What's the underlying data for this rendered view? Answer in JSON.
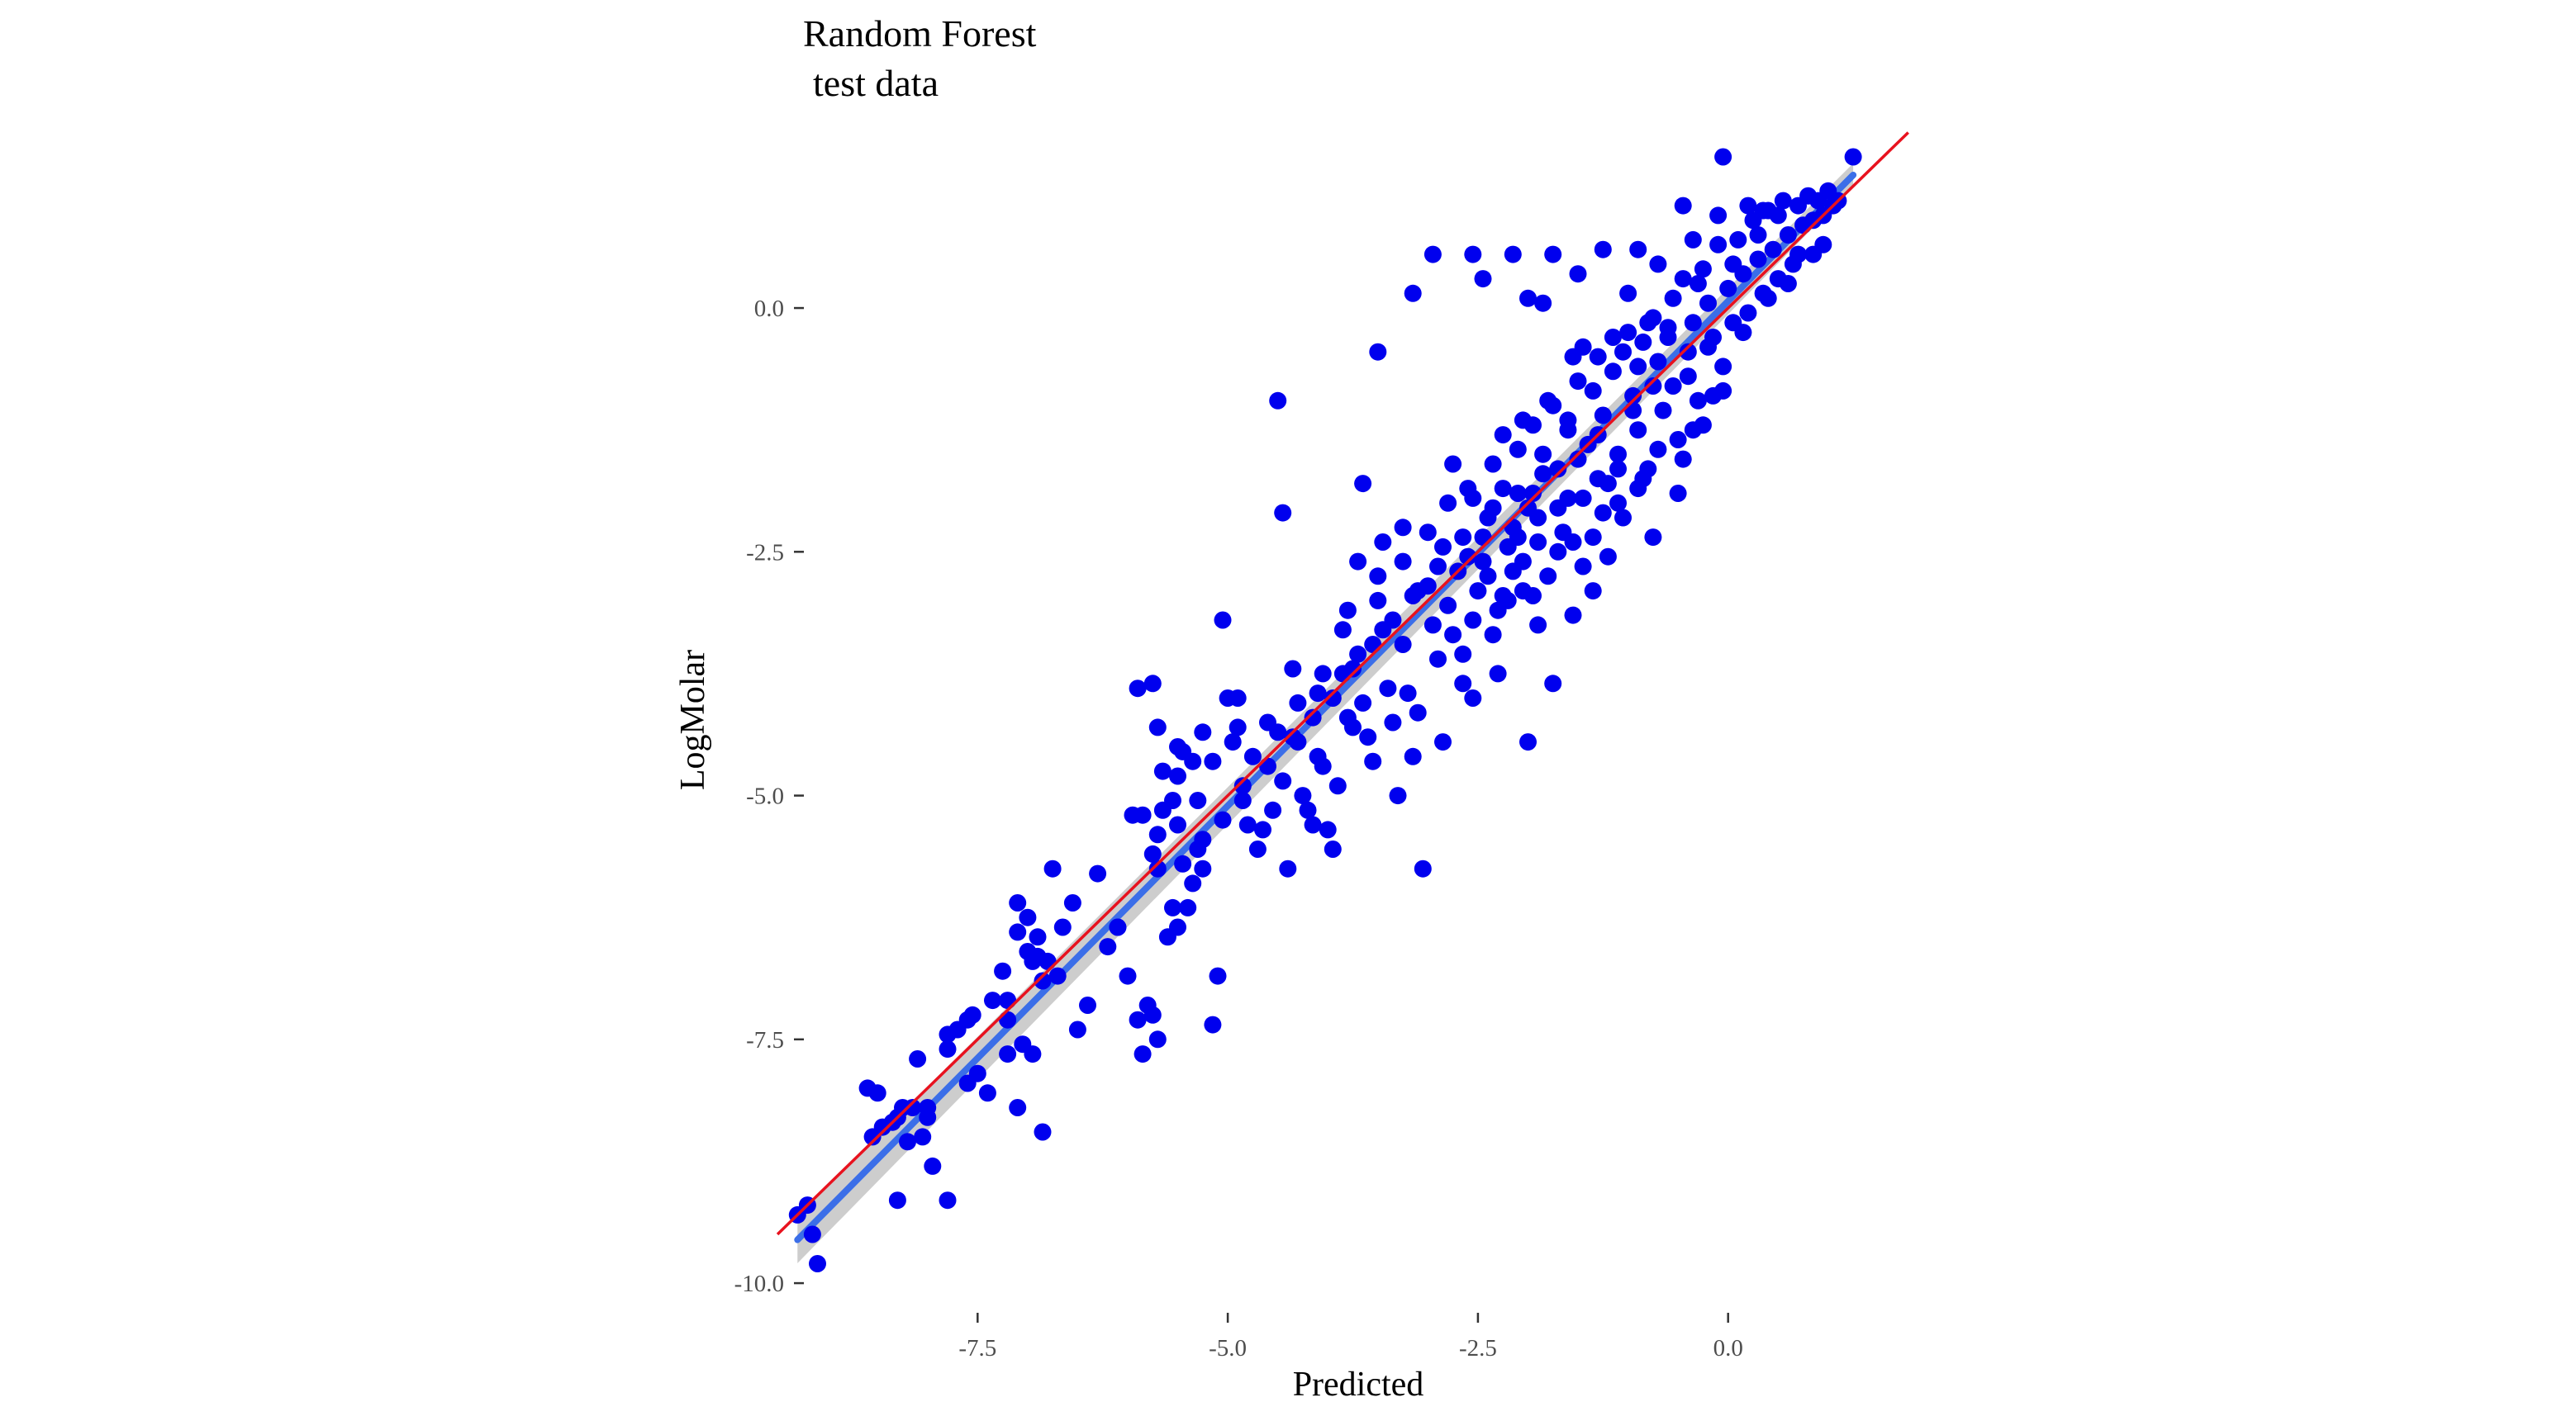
{
  "chart_data": {
    "type": "scatter",
    "title": "Random Forest",
    "subtitle": "test data",
    "xlabel": "Predicted",
    "ylabel": "LogMolar",
    "xlim": [
      -9.55,
      2.05
    ],
    "ylim": [
      -10.05,
      1.55
    ],
    "x_ticks": [
      -7.5,
      -5.0,
      -2.5,
      0.0
    ],
    "x_tick_labels": [
      "-7.5",
      "-5.0",
      "-2.5",
      "0.0"
    ],
    "y_ticks": [
      0.0,
      -2.5,
      -5.0,
      -7.5,
      -10.0
    ],
    "y_tick_labels": [
      "0.0",
      "-2.5",
      "-5.0",
      "-7.5",
      "-10.0"
    ],
    "grid": false,
    "colors": {
      "points": "#0000ee",
      "identity_line": "#e8121e",
      "fit_line": "#3b6ee8",
      "fit_band": "#c4c4c4"
    },
    "reference_line": {
      "type": "identity",
      "slope": 1,
      "intercept": 0,
      "x_range": [
        -9.5,
        1.8
      ]
    },
    "fit_line": {
      "type": "linear",
      "slope": 1.035,
      "intercept": 0.07,
      "x_range": [
        -9.3,
        1.25
      ]
    },
    "points": [
      [
        -9.3,
        -9.3
      ],
      [
        -9.2,
        -9.2
      ],
      [
        -9.15,
        -9.5
      ],
      [
        -9.1,
        -9.8
      ],
      [
        -8.3,
        -9.15
      ],
      [
        -8.6,
        -8
      ],
      [
        -8.5,
        -8.05
      ],
      [
        -8.35,
        -8.35
      ],
      [
        -8.2,
        -8.55
      ],
      [
        -8.15,
        -8.2
      ],
      [
        -8.05,
        -8.5
      ],
      [
        -8.0,
        -8.2
      ],
      [
        -7.95,
        -8.8
      ],
      [
        -7.8,
        -9.15
      ],
      [
        -8.45,
        -8.4
      ],
      [
        -8.3,
        -8.3
      ],
      [
        -8.1,
        -7.7
      ],
      [
        -7.8,
        -7.45
      ],
      [
        -7.7,
        -7.4
      ],
      [
        -7.6,
        -7.3
      ],
      [
        -7.55,
        -7.25
      ],
      [
        -7.5,
        -7.85
      ],
      [
        -7.4,
        -8.05
      ],
      [
        -7.35,
        -7.1
      ],
      [
        -7.2,
        -7.65
      ],
      [
        -7.25,
        -6.8
      ],
      [
        -7.1,
        -8.2
      ],
      [
        -7.05,
        -7.55
      ],
      [
        -6.95,
        -7.65
      ],
      [
        -6.85,
        -8.45
      ],
      [
        -7.2,
        -7.3
      ],
      [
        -7.1,
        -6.4
      ],
      [
        -7.0,
        -6.6
      ],
      [
        -7.0,
        -6.25
      ],
      [
        -6.9,
        -6.65
      ],
      [
        -6.85,
        -6.9
      ],
      [
        -6.8,
        -6.7
      ],
      [
        -6.75,
        -5.75
      ],
      [
        -6.7,
        -6.85
      ],
      [
        -6.9,
        -6.45
      ],
      [
        -7.1,
        -6.1
      ],
      [
        -6.5,
        -7.4
      ],
      [
        -6.4,
        -7.15
      ],
      [
        -6.2,
        -6.55
      ],
      [
        -6.1,
        -6.35
      ],
      [
        -6.0,
        -6.85
      ],
      [
        -5.9,
        -7.3
      ],
      [
        -5.85,
        -7.65
      ],
      [
        -5.8,
        -7.15
      ],
      [
        -5.75,
        -7.25
      ],
      [
        -5.7,
        -7.5
      ],
      [
        -5.6,
        -6.45
      ],
      [
        -5.55,
        -6.15
      ],
      [
        -5.5,
        -6.35
      ],
      [
        -5.4,
        -6.15
      ],
      [
        -5.35,
        -5.9
      ],
      [
        -5.3,
        -5.55
      ],
      [
        -5.25,
        -5.75
      ],
      [
        -5.15,
        -7.35
      ],
      [
        -5.1,
        -6.85
      ],
      [
        -5.95,
        -5.2
      ],
      [
        -5.85,
        -5.2
      ],
      [
        -5.75,
        -5.6
      ],
      [
        -5.7,
        -5.4
      ],
      [
        -5.65,
        -5.15
      ],
      [
        -5.55,
        -5.05
      ],
      [
        -5.5,
        -4.8
      ],
      [
        -5.45,
        -4.55
      ],
      [
        -5.35,
        -4.65
      ],
      [
        -5.25,
        -4.35
      ],
      [
        -5.9,
        -3.9
      ],
      [
        -5.75,
        -3.85
      ],
      [
        -5.7,
        -4.3
      ],
      [
        -5.65,
        -4.75
      ],
      [
        -5.5,
        -4.5
      ],
      [
        -5.05,
        -3.2
      ],
      [
        -5.0,
        -4.0
      ],
      [
        -4.95,
        -4.45
      ],
      [
        -4.9,
        -4.3
      ],
      [
        -4.85,
        -5.05
      ],
      [
        -4.8,
        -5.3
      ],
      [
        -4.75,
        -4.6
      ],
      [
        -4.7,
        -5.55
      ],
      [
        -4.65,
        -5.35
      ],
      [
        -4.55,
        -5.15
      ],
      [
        -4.5,
        -4.35
      ],
      [
        -4.45,
        -4.85
      ],
      [
        -4.4,
        -5.75
      ],
      [
        -4.35,
        -3.7
      ],
      [
        -4.3,
        -4.45
      ],
      [
        -4.25,
        -5.0
      ],
      [
        -4.2,
        -5.15
      ],
      [
        -4.15,
        -5.3
      ],
      [
        -4.1,
        -4.6
      ],
      [
        -4.05,
        -4.7
      ],
      [
        -4.0,
        -5.35
      ],
      [
        -3.95,
        -5.55
      ],
      [
        -3.9,
        -4.9
      ],
      [
        -3.85,
        -3.75
      ],
      [
        -3.8,
        -4.2
      ],
      [
        -3.75,
        -4.3
      ],
      [
        -3.7,
        -3.55
      ],
      [
        -3.65,
        -4.05
      ],
      [
        -3.6,
        -4.4
      ],
      [
        -3.55,
        -4.65
      ],
      [
        -3.5,
        -2.75
      ],
      [
        -3.45,
        -3.3
      ],
      [
        -3.4,
        -3.9
      ],
      [
        -3.35,
        -4.25
      ],
      [
        -3.3,
        -5.0
      ],
      [
        -3.25,
        -3.45
      ],
      [
        -3.2,
        -3.95
      ],
      [
        -3.15,
        -2.95
      ],
      [
        -3.1,
        -4.15
      ],
      [
        -3.05,
        -5.75
      ],
      [
        -3.0,
        -2.85
      ],
      [
        -2.95,
        -3.25
      ],
      [
        -2.9,
        -3.6
      ],
      [
        -2.85,
        -2.45
      ],
      [
        -2.8,
        -3.05
      ],
      [
        -2.75,
        -3.35
      ],
      [
        -2.7,
        -2.7
      ],
      [
        -2.65,
        -3.85
      ],
      [
        -2.6,
        -2.55
      ],
      [
        -2.55,
        -3.2
      ],
      [
        -2.5,
        -2.9
      ],
      [
        -2.45,
        -2.35
      ],
      [
        -2.4,
        -2.75
      ],
      [
        -2.35,
        -2.05
      ],
      [
        -2.3,
        -3.1
      ],
      [
        -2.25,
        -1.85
      ],
      [
        -2.2,
        -3.0
      ],
      [
        -2.15,
        -2.25
      ],
      [
        -2.1,
        -1.45
      ],
      [
        -2.05,
        -2.6
      ],
      [
        -2.0,
        -2.05
      ],
      [
        -1.95,
        -1.2
      ],
      [
        -1.9,
        -2.4
      ],
      [
        -1.85,
        -1.7
      ],
      [
        -1.8,
        -2.75
      ],
      [
        -1.75,
        -1.0
      ],
      [
        -1.7,
        -1.65
      ],
      [
        -1.65,
        -2.3
      ],
      [
        -1.6,
        -1.25
      ],
      [
        -1.55,
        -3.15
      ],
      [
        -1.5,
        -0.75
      ],
      [
        -1.45,
        -1.95
      ],
      [
        -1.4,
        -1.4
      ],
      [
        -1.35,
        -2.35
      ],
      [
        -1.3,
        -0.5
      ],
      [
        -1.25,
        -1.1
      ],
      [
        -1.2,
        -1.8
      ],
      [
        -1.15,
        -0.65
      ],
      [
        -1.1,
        -1.5
      ],
      [
        -1.05,
        -2.15
      ],
      [
        -1.0,
        -0.25
      ],
      [
        -0.95,
        -0.9
      ],
      [
        -0.9,
        -1.25
      ],
      [
        -0.85,
        -0.35
      ],
      [
        -0.8,
        -1.65
      ],
      [
        -0.75,
        -0.1
      ],
      [
        -0.7,
        -0.55
      ],
      [
        -0.65,
        -1.05
      ],
      [
        -0.6,
        -0.2
      ],
      [
        -0.55,
        -0.8
      ],
      [
        -0.5,
        -1.35
      ],
      [
        -0.45,
        0.3
      ],
      [
        -0.4,
        -0.45
      ],
      [
        -0.35,
        -0.15
      ],
      [
        -0.3,
        -0.95
      ],
      [
        -0.25,
        0.4
      ],
      [
        -0.2,
        0.05
      ],
      [
        -0.15,
        -0.3
      ],
      [
        -0.1,
        0.65
      ],
      [
        -0.05,
        -0.6
      ],
      [
        0.0,
        0.2
      ],
      [
        0.05,
        -0.15
      ],
      [
        0.1,
        0.7
      ],
      [
        0.15,
        0.35
      ],
      [
        0.2,
        -0.05
      ],
      [
        0.25,
        0.9
      ],
      [
        0.3,
        0.5
      ],
      [
        0.35,
        0.15
      ],
      [
        0.4,
        1.0
      ],
      [
        0.45,
        0.6
      ],
      [
        0.5,
        0.3
      ],
      [
        0.55,
        1.1
      ],
      [
        0.6,
        0.75
      ],
      [
        0.65,
        0.45
      ],
      [
        0.7,
        1.05
      ],
      [
        0.75,
        0.85
      ],
      [
        0.8,
        1.15
      ],
      [
        0.85,
        0.9
      ],
      [
        0.9,
        1.1
      ],
      [
        0.95,
        0.95
      ],
      [
        1.0,
        1.2
      ],
      [
        1.05,
        1.05
      ],
      [
        1.1,
        1.1
      ],
      [
        0.95,
        0.65
      ],
      [
        0.85,
        0.55
      ],
      [
        1.25,
        1.55
      ],
      [
        -0.05,
        1.55
      ],
      [
        0.2,
        1.05
      ],
      [
        -0.45,
        1.05
      ],
      [
        -0.9,
        0.6
      ],
      [
        -1.25,
        0.6
      ],
      [
        -1.5,
        0.35
      ],
      [
        -1.75,
        0.55
      ],
      [
        -2.15,
        0.55
      ],
      [
        -2.55,
        0.55
      ],
      [
        -2.95,
        0.55
      ],
      [
        -3.15,
        0.15
      ],
      [
        -2.45,
        0.3
      ],
      [
        -2.0,
        0.1
      ],
      [
        -1.85,
        0.05
      ],
      [
        -3.5,
        -0.45
      ],
      [
        -4.5,
        -0.95
      ],
      [
        -4.45,
        -2.1
      ],
      [
        -3.65,
        -1.8
      ],
      [
        -3.25,
        -2.25
      ],
      [
        -3.45,
        -2.4
      ],
      [
        -3.7,
        -2.6
      ],
      [
        -2.75,
        -1.6
      ],
      [
        -2.25,
        -1.3
      ],
      [
        -1.55,
        -0.5
      ],
      [
        -1.15,
        -0.3
      ],
      [
        -0.25,
        -1.2
      ],
      [
        -0.05,
        -0.85
      ],
      [
        -0.45,
        -1.55
      ],
      [
        -0.85,
        -1.75
      ],
      [
        -1.25,
        -2.1
      ],
      [
        -0.75,
        -2.35
      ],
      [
        -2.3,
        -3.75
      ],
      [
        -2.0,
        -4.45
      ],
      [
        -1.9,
        -3.25
      ],
      [
        -1.75,
        -3.85
      ],
      [
        -2.55,
        -4.0
      ],
      [
        -2.85,
        -4.45
      ],
      [
        -3.15,
        -4.6
      ],
      [
        -2.65,
        -3.55
      ],
      [
        -3.8,
        -3.1
      ],
      [
        -4.05,
        -3.75
      ],
      [
        -4.3,
        -4.05
      ],
      [
        -4.6,
        -4.25
      ],
      [
        -4.9,
        -4.0
      ],
      [
        -5.15,
        -4.65
      ],
      [
        -5.3,
        -5.05
      ],
      [
        -5.5,
        -5.3
      ],
      [
        -5.7,
        -5.75
      ],
      [
        -6.1,
        -6.35
      ],
      [
        -6.3,
        -5.8
      ],
      [
        -6.55,
        -6.1
      ],
      [
        -6.65,
        -6.35
      ],
      [
        -6.95,
        -6.7
      ],
      [
        -7.2,
        -7.1
      ],
      [
        -7.6,
        -7.95
      ],
      [
        -7.8,
        -7.6
      ],
      [
        -8.0,
        -8.3
      ],
      [
        -8.25,
        -8.2
      ],
      [
        -8.55,
        -8.5
      ],
      [
        -2.2,
        -2.45
      ],
      [
        -2.05,
        -2.9
      ],
      [
        -1.9,
        -2.15
      ],
      [
        -1.7,
        -2.5
      ],
      [
        -1.6,
        -1.95
      ],
      [
        -1.45,
        -2.65
      ],
      [
        -1.3,
        -1.75
      ],
      [
        -1.1,
        -2.0
      ],
      [
        -0.95,
        -1.05
      ],
      [
        -0.75,
        -0.8
      ],
      [
        -0.6,
        -0.3
      ],
      [
        -0.4,
        -0.7
      ],
      [
        -0.2,
        -0.4
      ],
      [
        0.05,
        0.45
      ],
      [
        0.3,
        0.75
      ],
      [
        0.5,
        0.95
      ],
      [
        0.7,
        0.55
      ],
      [
        -0.3,
        0.25
      ],
      [
        -0.55,
        0.1
      ],
      [
        -0.8,
        -0.15
      ],
      [
        -1.05,
        -0.45
      ],
      [
        -1.35,
        -0.85
      ],
      [
        -1.6,
        -1.15
      ],
      [
        -1.85,
        -1.5
      ],
      [
        -2.1,
        -1.9
      ],
      [
        -2.4,
        -2.15
      ],
      [
        -2.65,
        -2.35
      ],
      [
        -2.9,
        -2.65
      ],
      [
        -3.1,
        -2.9
      ],
      [
        -3.35,
        -3.2
      ],
      [
        -3.55,
        -3.45
      ],
      [
        -3.75,
        -3.7
      ],
      [
        -3.95,
        -4.0
      ],
      [
        -4.15,
        -4.2
      ],
      [
        -4.35,
        -4.4
      ],
      [
        -4.6,
        -4.7
      ],
      [
        -4.85,
        -4.9
      ],
      [
        -5.05,
        -5.25
      ],
      [
        -5.25,
        -5.45
      ],
      [
        -5.45,
        -5.7
      ],
      [
        -2.35,
        -3.35
      ],
      [
        -2.15,
        -2.7
      ],
      [
        -1.95,
        -2.95
      ],
      [
        -1.55,
        -2.4
      ],
      [
        -1.35,
        -2.9
      ],
      [
        -1.2,
        -2.55
      ],
      [
        -0.9,
        -1.85
      ],
      [
        -0.7,
        -1.45
      ],
      [
        -0.5,
        -1.9
      ],
      [
        -0.35,
        -1.25
      ],
      [
        -0.15,
        -0.9
      ],
      [
        0.15,
        -0.25
      ],
      [
        0.4,
        0.1
      ],
      [
        0.6,
        0.25
      ],
      [
        -2.55,
        -1.95
      ],
      [
        -2.35,
        -1.6
      ],
      [
        -2.05,
        -1.15
      ],
      [
        -1.8,
        -0.95
      ],
      [
        -1.45,
        -0.4
      ],
      [
        -1.0,
        0.15
      ],
      [
        -0.7,
        0.45
      ],
      [
        -0.35,
        0.7
      ],
      [
        -0.1,
        0.95
      ],
      [
        0.35,
        1.0
      ],
      [
        -3.0,
        -2.3
      ],
      [
        -2.8,
        -2.0
      ],
      [
        -3.25,
        -2.6
      ],
      [
        -3.5,
        -3.0
      ],
      [
        -3.85,
        -3.3
      ],
      [
        -4.1,
        -3.95
      ],
      [
        -2.6,
        -1.85
      ],
      [
        -2.45,
        -2.6
      ],
      [
        -2.25,
        -2.95
      ],
      [
        -2.1,
        -2.35
      ],
      [
        -1.95,
        -1.9
      ],
      [
        -1.7,
        -2.05
      ],
      [
        -1.5,
        -1.55
      ],
      [
        -1.3,
        -1.3
      ],
      [
        -1.1,
        -1.65
      ],
      [
        -0.9,
        -0.6
      ]
    ]
  }
}
